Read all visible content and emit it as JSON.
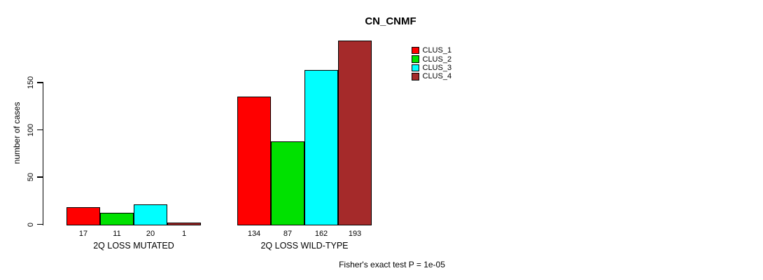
{
  "chart_data": {
    "type": "bar",
    "title": "CN_CNMF",
    "ylabel": "number of cases",
    "ylim": [
      0,
      150
    ],
    "yticks": [
      0,
      50,
      100,
      150
    ],
    "grid": false,
    "legend_position": "top-right",
    "categories": [
      "2Q LOSS MUTATED",
      "2Q LOSS WILD-TYPE"
    ],
    "groups": [
      {
        "label": "2Q LOSS MUTATED",
        "values": [
          17,
          11,
          20,
          1
        ]
      },
      {
        "label": "2Q LOSS WILD-TYPE",
        "values": [
          134,
          87,
          162,
          193
        ]
      }
    ],
    "series": [
      {
        "name": "CLUS_1",
        "color": "#FF0000",
        "values": [
          17,
          134
        ]
      },
      {
        "name": "CLUS_2",
        "color": "#00E100",
        "values": [
          11,
          87
        ]
      },
      {
        "name": "CLUS_3",
        "color": "#00FFFF",
        "values": [
          20,
          162
        ]
      },
      {
        "name": "CLUS_4",
        "color": "#A52A2A",
        "values": [
          1,
          193
        ]
      }
    ],
    "annotation": "Fisher's exact test P = 1e-05"
  }
}
